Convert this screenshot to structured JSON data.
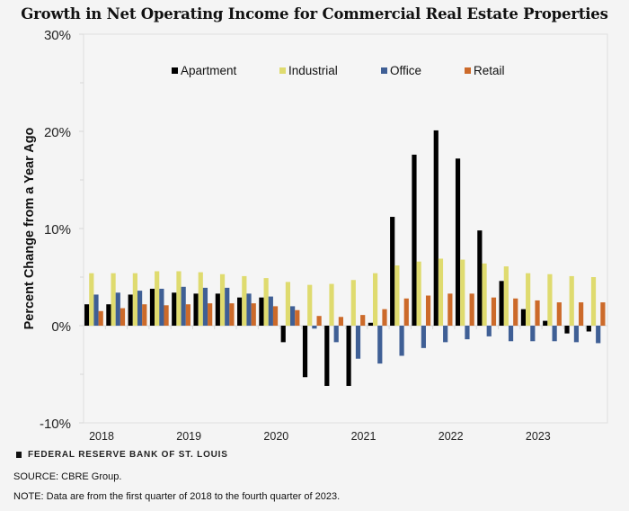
{
  "title": "Growth in Net Operating Income for Commercial Real Estate Properties",
  "footer": {
    "brand": "FEDERAL RESERVE BANK OF ST. LOUIS",
    "source": "SOURCE: CBRE Group.",
    "note": "NOTE: Data are from the first quarter of 2018 to the fourth quarter of 2023."
  },
  "chart_data": {
    "type": "bar",
    "title": "Growth in Net Operating Income for Commercial Real Estate Properties",
    "xlabel": "",
    "ylabel": "Percent Change from a Year Ago",
    "ylim": [
      -10,
      30
    ],
    "yticks": [
      -10,
      0,
      10,
      20,
      30
    ],
    "ytick_labels": [
      "-10%",
      "0%",
      "10%",
      "20%",
      "30%"
    ],
    "grid": false,
    "legend_position": "top",
    "categories": [
      "2018Q1",
      "2018Q2",
      "2018Q3",
      "2018Q4",
      "2019Q1",
      "2019Q2",
      "2019Q3",
      "2019Q4",
      "2020Q1",
      "2020Q2",
      "2020Q3",
      "2020Q4",
      "2021Q1",
      "2021Q2",
      "2021Q3",
      "2021Q4",
      "2022Q1",
      "2022Q2",
      "2022Q3",
      "2022Q4",
      "2023Q1",
      "2023Q2",
      "2023Q3",
      "2023Q4"
    ],
    "xtick_labels": [
      "2018",
      "2019",
      "2020",
      "2021",
      "2022",
      "2023"
    ],
    "series": [
      {
        "name": "Apartment",
        "color": "#000000",
        "values": [
          2.2,
          2.2,
          3.2,
          3.8,
          3.4,
          3.3,
          3.3,
          2.9,
          2.9,
          -1.7,
          -5.3,
          -6.2,
          -6.2,
          0.3,
          11.2,
          17.6,
          20.1,
          17.2,
          9.8,
          4.6,
          1.7,
          0.5,
          -0.8,
          -0.6
        ]
      },
      {
        "name": "Industrial",
        "color": "#dfdb6f",
        "values": [
          5.4,
          5.4,
          5.4,
          5.6,
          5.6,
          5.5,
          5.3,
          5.1,
          4.9,
          4.5,
          4.2,
          4.3,
          4.7,
          5.4,
          6.2,
          6.6,
          6.9,
          6.8,
          6.4,
          6.1,
          5.4,
          5.3,
          5.1,
          5.0
        ]
      },
      {
        "name": "Office",
        "color": "#3f5f95",
        "values": [
          3.2,
          3.4,
          3.6,
          3.8,
          4.0,
          3.9,
          3.9,
          3.3,
          3.0,
          2.0,
          -0.3,
          -1.7,
          -3.4,
          -3.9,
          -3.1,
          -2.3,
          -1.7,
          -1.4,
          -1.1,
          -1.6,
          -1.6,
          -1.6,
          -1.7,
          -1.8
        ]
      },
      {
        "name": "Retail",
        "color": "#cc6a2a",
        "values": [
          1.5,
          1.8,
          2.2,
          2.1,
          2.2,
          2.3,
          2.3,
          2.3,
          2.0,
          1.6,
          1.0,
          0.9,
          1.1,
          1.7,
          2.8,
          3.1,
          3.3,
          3.3,
          2.9,
          2.8,
          2.6,
          2.4,
          2.4,
          2.4
        ]
      }
    ]
  }
}
